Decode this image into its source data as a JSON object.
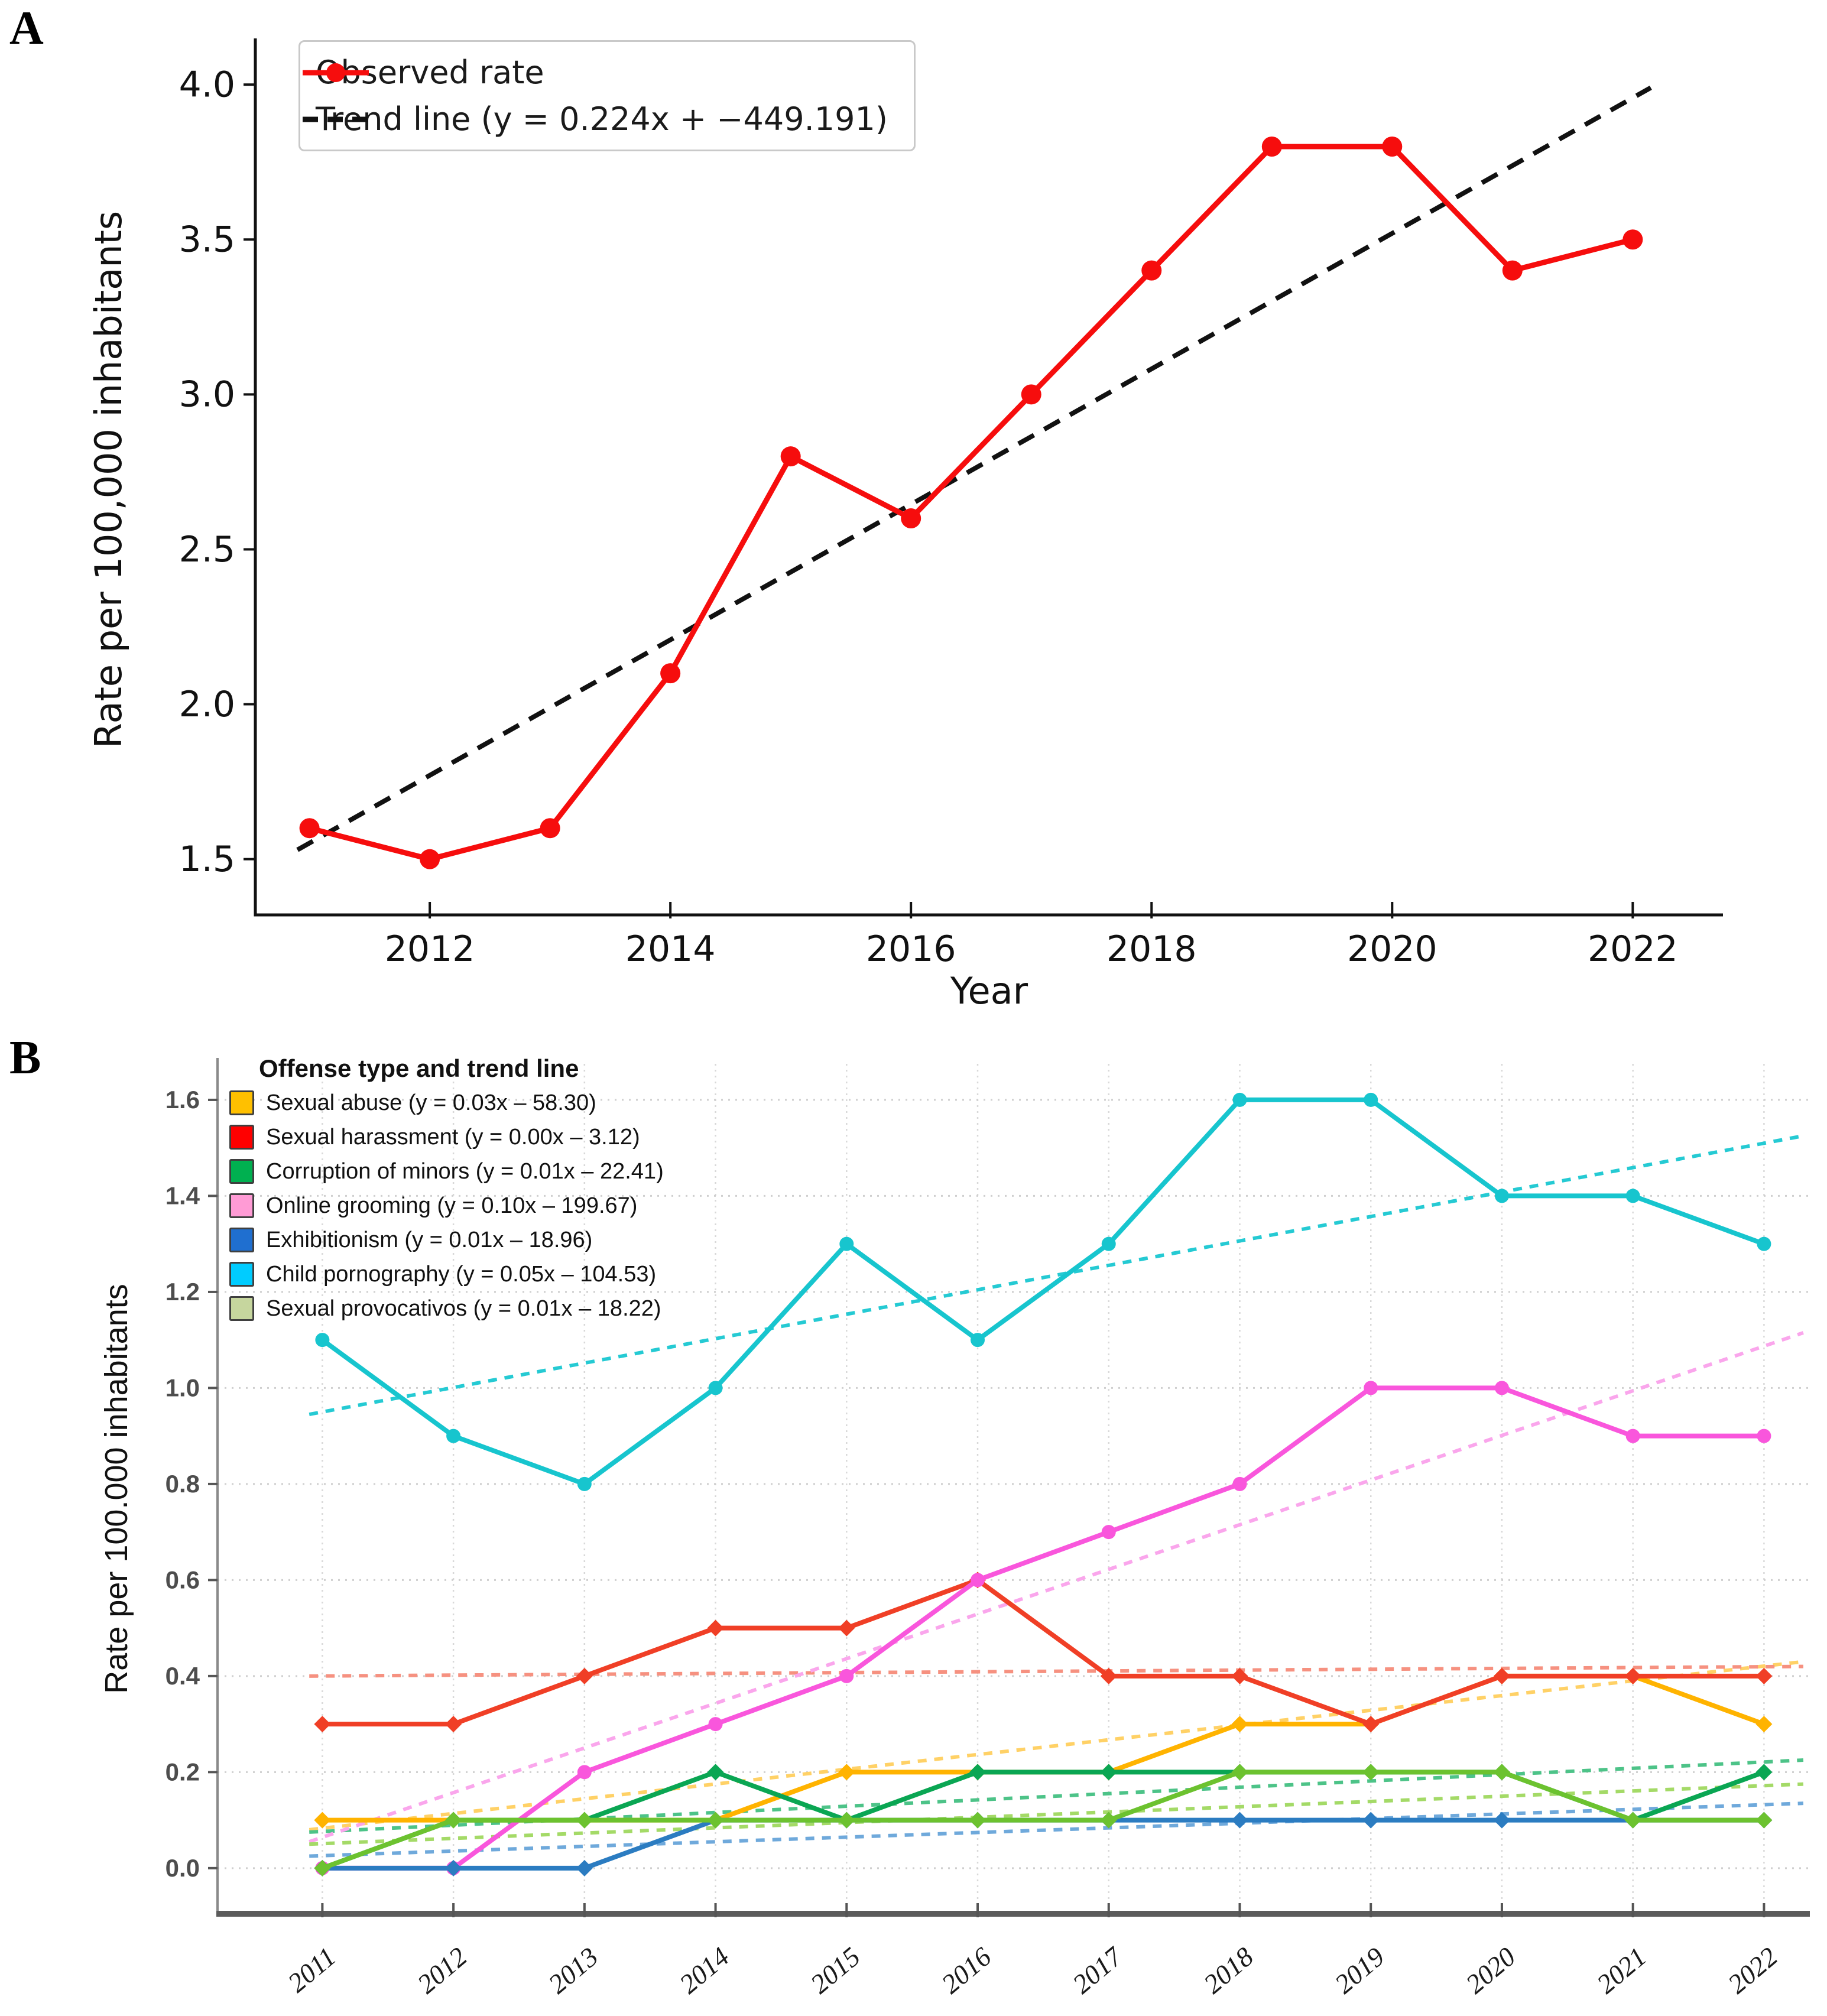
{
  "page": {
    "background": "#ffffff"
  },
  "chart_data": [
    {
      "id": "panel_a",
      "type": "line",
      "panel": "A",
      "title": "",
      "xlabel": "Year",
      "ylabel": "Rate per 100,000 inhabitants",
      "x": [
        2011,
        2012,
        2013,
        2014,
        2015,
        2016,
        2017,
        2018,
        2019,
        2020,
        2021,
        2022
      ],
      "xticks": [
        2012,
        2014,
        2016,
        2018,
        2020,
        2022
      ],
      "yticks": [
        1.5,
        2.0,
        2.5,
        3.0,
        3.5,
        4.0
      ],
      "xlim": [
        2010.55,
        2022.75
      ],
      "ylim": [
        1.32,
        4.13
      ],
      "grid": false,
      "legend_position": "upper-left",
      "series": [
        {
          "name": "Observed rate",
          "color": "#f60d0d",
          "line": "solid",
          "marker": "circle",
          "values": [
            1.6,
            1.5,
            1.6,
            2.1,
            2.8,
            2.6,
            3.0,
            3.4,
            3.8,
            3.8,
            3.4,
            3.5
          ]
        },
        {
          "name": "Trend line (y = 0.224x + −449.191)",
          "color": "#111111",
          "line": "dashed",
          "marker": "none",
          "trend": {
            "x": [
              2010.9,
              2022.15
            ],
            "y": [
              1.53,
              3.99
            ]
          }
        }
      ]
    },
    {
      "id": "panel_b",
      "type": "line",
      "panel": "B",
      "title": "",
      "xlabel": "",
      "ylabel": "Rate per 100.000 inhabitants",
      "legend_title": "Offense type and trend line",
      "x": [
        2011,
        2012,
        2013,
        2014,
        2015,
        2016,
        2017,
        2018,
        2019,
        2020,
        2021,
        2022
      ],
      "xticks": [
        2011,
        2012,
        2013,
        2014,
        2015,
        2016,
        2017,
        2018,
        2019,
        2020,
        2021,
        2022
      ],
      "yticks": [
        0.0,
        0.2,
        0.4,
        0.6,
        0.8,
        1.0,
        1.2,
        1.4,
        1.6
      ],
      "xlim": [
        2010.2,
        2022.35
      ],
      "ylim": [
        -0.095,
        1.675
      ],
      "grid": true,
      "legend_position": "upper-left",
      "series": [
        {
          "name": "Sexual abuse (y = 0.03x – 58.30)",
          "swatch": "#FFC000",
          "color": "#FFB300",
          "trend_color": "#FFD166",
          "marker": "diamond",
          "values": [
            0.1,
            0.1,
            0.1,
            0.1,
            0.2,
            0.2,
            0.2,
            0.3,
            0.3,
            0.4,
            0.4,
            0.3
          ],
          "trend": {
            "x": [
              2010.9,
              2022.3
            ],
            "y": [
              0.08,
              0.43
            ]
          }
        },
        {
          "name": "Sexual harassment (y = 0.00x – 3.12)",
          "swatch": "#FF0000",
          "color": "#F03F26",
          "trend_color": "#F69180",
          "marker": "diamond",
          "values": [
            0.3,
            0.3,
            0.4,
            0.5,
            0.5,
            0.6,
            0.4,
            0.4,
            0.3,
            0.4,
            0.4,
            0.4
          ],
          "trend": {
            "x": [
              2010.9,
              2022.3
            ],
            "y": [
              0.4,
              0.42
            ]
          }
        },
        {
          "name": "Corruption of minors (y = 0.01x – 22.41)",
          "swatch": "#00B050",
          "color": "#0AA653",
          "trend_color": "#4DC388",
          "marker": "diamond",
          "values": [
            0.0,
            0.1,
            0.1,
            0.2,
            0.1,
            0.2,
            0.2,
            0.2,
            0.2,
            0.2,
            0.1,
            0.2
          ],
          "trend": {
            "x": [
              2010.9,
              2022.3
            ],
            "y": [
              0.075,
              0.225
            ]
          }
        },
        {
          "name": "Online grooming (y = 0.10x – 199.67)",
          "swatch": "#FF9BD5",
          "color": "#F956DC",
          "trend_color": "#FAA6EC",
          "marker": "circle",
          "values": [
            0.0,
            0.0,
            0.2,
            0.3,
            0.4,
            0.6,
            0.7,
            0.8,
            1.0,
            1.0,
            0.9,
            0.9
          ],
          "trend": {
            "x": [
              2010.9,
              2022.3
            ],
            "y": [
              0.055,
              1.115
            ]
          }
        },
        {
          "name": "Exhibitionism (y = 0.01x – 18.96)",
          "swatch": "#1F6FD0",
          "color": "#2B7CC1",
          "trend_color": "#6FA9DB",
          "marker": "diamond",
          "values": [
            0.0,
            0.0,
            0.0,
            0.1,
            0.1,
            0.1,
            0.1,
            0.1,
            0.1,
            0.1,
            0.1,
            0.1
          ],
          "trend": {
            "x": [
              2010.9,
              2022.3
            ],
            "y": [
              0.025,
              0.135
            ]
          }
        },
        {
          "name": "Child pornography (y = 0.05x – 104.53)",
          "swatch": "#00CCFF",
          "color": "#17C5CE",
          "trend_color": "#25CAD3",
          "marker": "circle",
          "values": [
            1.1,
            0.9,
            0.8,
            1.0,
            1.3,
            1.1,
            1.3,
            1.6,
            1.6,
            1.4,
            1.4,
            1.3
          ],
          "trend": {
            "x": [
              2010.9,
              2022.3
            ],
            "y": [
              0.945,
              1.525
            ]
          }
        },
        {
          "name": "Sexual provocativos (y = 0.01x – 18.22)",
          "swatch": "#C6D69E",
          "color": "#6CC22F",
          "trend_color": "#A4DA67",
          "marker": "diamond",
          "values": [
            0.0,
            0.1,
            0.1,
            0.1,
            0.1,
            0.1,
            0.1,
            0.2,
            0.2,
            0.2,
            0.1,
            0.1
          ],
          "trend": {
            "x": [
              2010.9,
              2022.3
            ],
            "y": [
              0.05,
              0.175
            ]
          }
        }
      ]
    }
  ]
}
